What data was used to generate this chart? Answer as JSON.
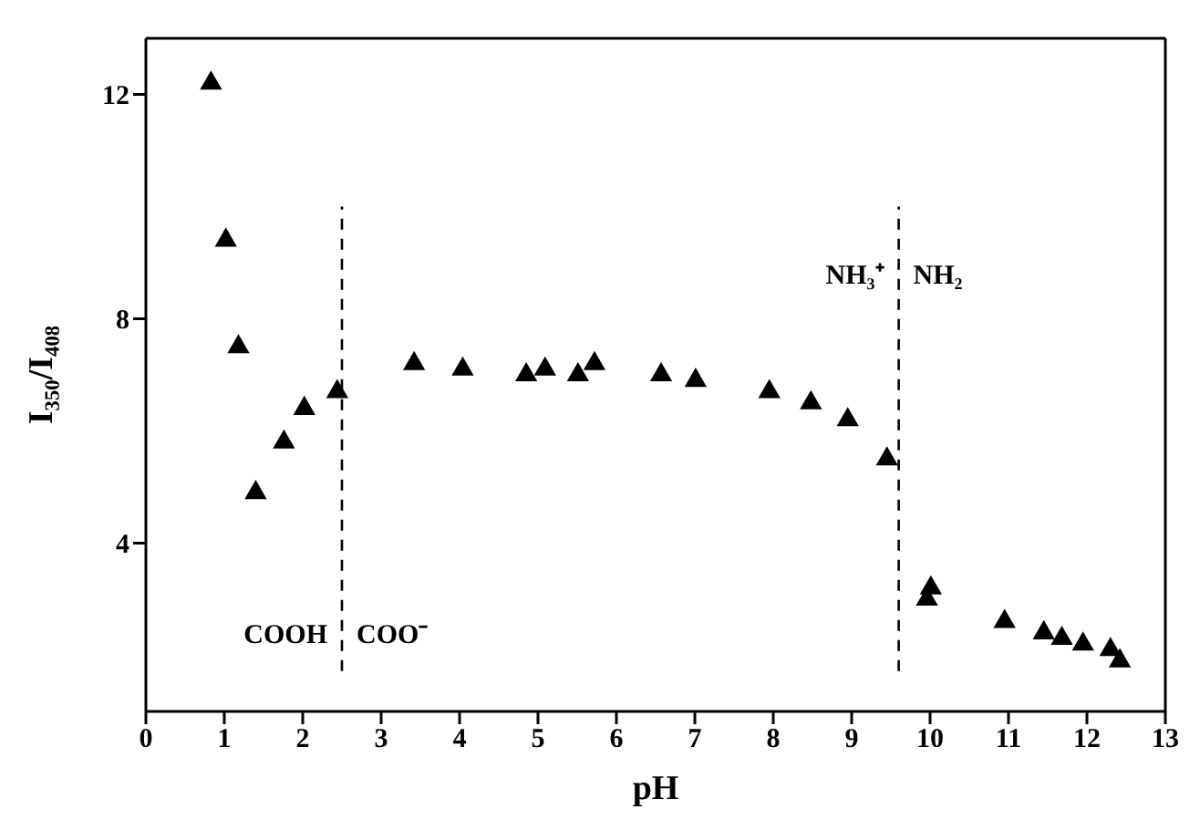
{
  "chart_data": {
    "type": "scatter",
    "xlabel": "pH",
    "ylabel": "I₃₅₀/I₄₀₈",
    "x": [
      0.83,
      1.02,
      1.18,
      1.4,
      1.76,
      2.02,
      2.44,
      3.42,
      4.04,
      4.85,
      5.09,
      5.51,
      5.72,
      6.57,
      7.01,
      7.95,
      8.48,
      8.95,
      9.45,
      9.96,
      10.01,
      10.95,
      11.45,
      11.68,
      11.95,
      12.3,
      12.42
    ],
    "series": [
      {
        "color": "#000000",
        "values": [
          12.2,
          9.4,
          7.5,
          4.9,
          5.8,
          6.4,
          6.7,
          7.2,
          7.1,
          7.0,
          7.1,
          7.0,
          7.2,
          7.0,
          6.9,
          6.7,
          6.5,
          6.2,
          5.5,
          3.0,
          3.2,
          2.6,
          2.4,
          2.3,
          2.2,
          2.1,
          1.9
        ]
      }
    ],
    "xlim": [
      0,
      13
    ],
    "xticks": [
      0,
      1,
      2,
      3,
      4,
      5,
      6,
      7,
      8,
      9,
      10,
      11,
      12,
      13
    ],
    "ylim": [
      1,
      13
    ],
    "yticks": [
      4,
      8,
      12
    ],
    "marker": "triangle",
    "ref_lines": [
      {
        "axis": "x",
        "value": 2.5,
        "color": "#000000",
        "line_style": "dashed"
      },
      {
        "axis": "x",
        "value": 9.6,
        "color": "#000000",
        "line_style": "dashed"
      }
    ],
    "annotations": [
      "COOH",
      "COO⁻",
      "NH₃⁺",
      "NH₂"
    ]
  }
}
